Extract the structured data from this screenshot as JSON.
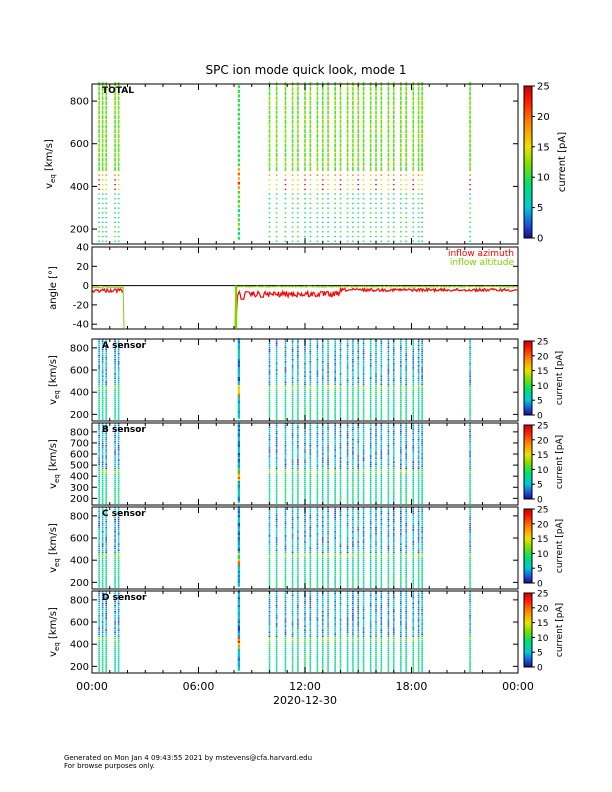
{
  "chart_data": {
    "type": "heatmap",
    "title": "SPC ion mode quick look, mode 1",
    "xlabel": "2020-12-30",
    "x_range_hours": [
      0,
      24
    ],
    "x_ticks": [
      {
        "hour": 0,
        "label": "00:00"
      },
      {
        "hour": 6,
        "label": "06:00"
      },
      {
        "hour": 12,
        "label": "12:00"
      },
      {
        "hour": 18,
        "label": "18:00"
      },
      {
        "hour": 24,
        "label": "00:00"
      }
    ],
    "scan_times_hours": [
      0.4,
      0.6,
      0.8,
      1.3,
      1.5,
      8.2,
      8.35,
      10.0,
      10.4,
      10.9,
      11.3,
      11.6,
      12.0,
      12.3,
      12.7,
      13.0,
      13.3,
      13.7,
      14.0,
      14.4,
      14.7,
      15.0,
      15.3,
      15.7,
      16.0,
      16.3,
      16.7,
      17.0,
      17.4,
      17.7,
      18.1,
      18.4,
      18.6,
      21.3
    ],
    "dense_block_hours": [
      8.1,
      8.45
    ],
    "colorbar": {
      "label": "current [pA]",
      "range": [
        0,
        25
      ],
      "ticks_total": [
        0,
        5,
        10,
        15,
        20,
        25
      ],
      "ticks_sensor": [
        0,
        5,
        10,
        15,
        20,
        25
      ]
    },
    "panels": [
      {
        "id": "total",
        "label": "TOTAL",
        "ylabel_main": "v",
        "ylabel_sub": "eq",
        "ylabel_unit": "[km/s]",
        "ylim": [
          130,
          880
        ],
        "yticks": [
          200,
          400,
          600,
          800
        ]
      },
      {
        "id": "angle",
        "ylabel": "angle [°]",
        "ylim": [
          -45,
          40
        ],
        "yticks": [
          -40,
          -20,
          0,
          20,
          40
        ],
        "series": [
          {
            "name": "inflow azimuth",
            "color": "#ff0000"
          },
          {
            "name": "inflow altitude",
            "color": "#7fd400"
          }
        ]
      },
      {
        "id": "a",
        "label": "A sensor",
        "ylabel_main": "v",
        "ylabel_sub": "eq",
        "ylabel_unit": "[km/s]",
        "ylim": [
          140,
          880
        ],
        "yticks": [
          200,
          400,
          600,
          800
        ]
      },
      {
        "id": "b",
        "label": "B sensor",
        "ylabel_main": "v",
        "ylabel_sub": "eq",
        "ylabel_unit": "[km/s]",
        "ylim": [
          140,
          880
        ],
        "yticks": [
          200,
          300,
          400,
          500,
          600,
          700,
          800
        ]
      },
      {
        "id": "c",
        "label": "C sensor",
        "ylabel_main": "v",
        "ylabel_sub": "eq",
        "ylabel_unit": "[km/s]",
        "ylim": [
          140,
          880
        ],
        "yticks": [
          200,
          400,
          600,
          800
        ]
      },
      {
        "id": "d",
        "label": "D sensor",
        "ylabel_main": "v",
        "ylabel_sub": "eq",
        "ylabel_unit": "[km/s]",
        "ylim": [
          140,
          880
        ],
        "yticks": [
          200,
          400,
          600,
          800
        ]
      }
    ]
  },
  "footer": {
    "line1": "Generated on Mon Jan  4 09:43:55 2021 by mstevens@cfa.harvard.edu",
    "line2": "For browse purposes only."
  }
}
